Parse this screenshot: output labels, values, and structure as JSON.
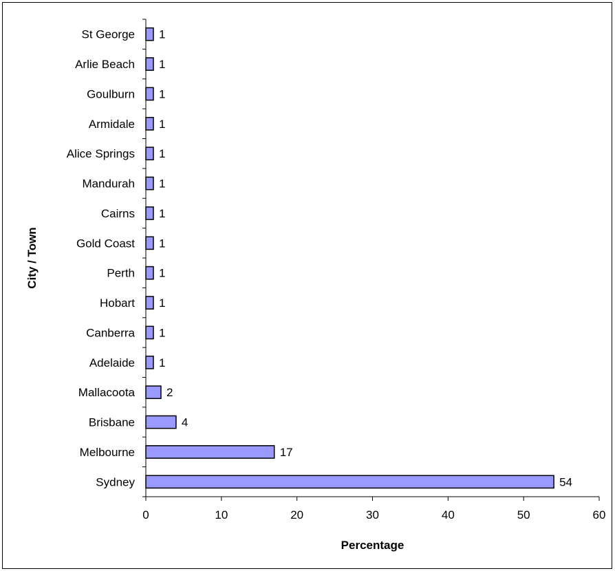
{
  "chart_data": {
    "type": "bar",
    "orientation": "horizontal",
    "categories": [
      "St George",
      "Arlie Beach",
      "Goulburn",
      "Armidale",
      "Alice Springs",
      "Mandurah",
      "Cairns",
      "Gold Coast",
      "Perth",
      "Hobart",
      "Canberra",
      "Adelaide",
      "Mallacoota",
      "Brisbane",
      "Melbourne",
      "Sydney"
    ],
    "values": [
      1,
      1,
      1,
      1,
      1,
      1,
      1,
      1,
      1,
      1,
      1,
      1,
      2,
      4,
      17,
      54
    ],
    "xlabel": "Percentage",
    "ylabel": "City / Town",
    "xlim": [
      0,
      60
    ],
    "xticks": [
      0,
      10,
      20,
      30,
      40,
      50,
      60
    ],
    "grid": false,
    "legend": "none",
    "data_labels": true,
    "colors": {
      "bar_fill": "#9999ff",
      "bar_stroke": "#000000"
    }
  }
}
